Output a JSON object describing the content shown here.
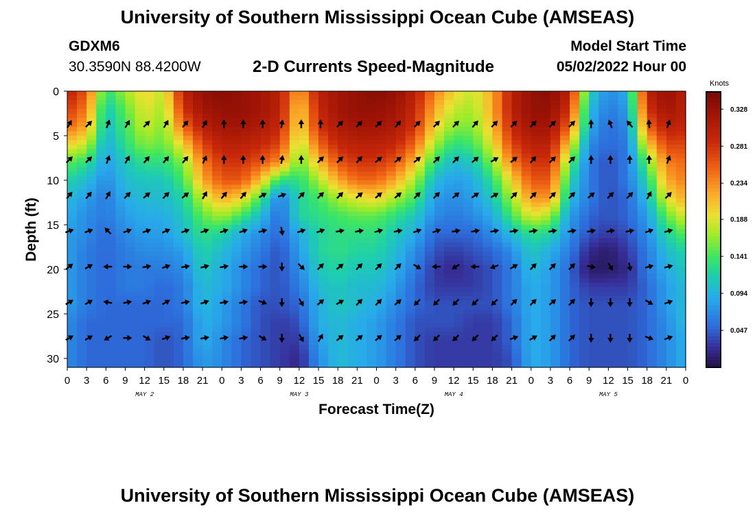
{
  "header": {
    "title": "University of Southern Mississippi Ocean Cube (AMSEAS)",
    "station_id": "GDXM6",
    "station_coords": "30.3590N  88.4200W",
    "subtitle": "2-D Currents Speed-Magnitude",
    "start_label": "Model Start Time",
    "start_value": "05/02/2022 Hour 00"
  },
  "footer": {
    "title": "University of Southern Mississippi Ocean Cube (AMSEAS)"
  },
  "chart_data": {
    "type": "heatmap",
    "title": "2-D Currents Speed-Magnitude",
    "xlabel": "Forecast Time(Z)",
    "ylabel": "Depth (ft)",
    "xlim": [
      0,
      96
    ],
    "ylim": [
      0,
      31
    ],
    "x_ticks": [
      0,
      3,
      6,
      9,
      12,
      15,
      18,
      21,
      24,
      27,
      30,
      33,
      36,
      39,
      42,
      45,
      48,
      51,
      54,
      57,
      60,
      63,
      66,
      69,
      72,
      75,
      78,
      81,
      84,
      87,
      90,
      93,
      96
    ],
    "x_tick_labels": [
      "0",
      "3",
      "6",
      "9",
      "12",
      "15",
      "18",
      "21",
      "0",
      "3",
      "6",
      "9",
      "12",
      "15",
      "18",
      "21",
      "0",
      "3",
      "6",
      "9",
      "12",
      "15",
      "18",
      "21",
      "0",
      "3",
      "6",
      "9",
      "12",
      "15",
      "18",
      "21",
      "0"
    ],
    "y_ticks": [
      0,
      5,
      10,
      15,
      20,
      25,
      30
    ],
    "y_tick_labels": [
      "0",
      "5",
      "10",
      "15",
      "20",
      "25",
      "30"
    ],
    "day_labels": [
      {
        "label": "MAY 2",
        "hour": 12
      },
      {
        "label": "MAY 3",
        "hour": 36
      },
      {
        "label": "MAY 4",
        "hour": 60
      },
      {
        "label": "MAY 5",
        "hour": 84
      }
    ],
    "colorbar": {
      "label": "Knots",
      "min": 0.0,
      "max": 0.35,
      "ticks": [
        0.328,
        0.281,
        0.234,
        0.188,
        0.141,
        0.094,
        0.047
      ],
      "tick_labels": [
        "0.328",
        "0.281",
        "0.234",
        "0.188",
        "0.141",
        "0.094",
        "0.047"
      ]
    },
    "arrow_depths": [
      3.7,
      7.7,
      11.7,
      15.7,
      19.7,
      23.7,
      27.7
    ],
    "arrow_hours": [
      0,
      3,
      6,
      9,
      12,
      15,
      18,
      21,
      24,
      27,
      30,
      33,
      36,
      39,
      42,
      45,
      48,
      51,
      54,
      57,
      60,
      63,
      66,
      69,
      72,
      75,
      78,
      81,
      84,
      87,
      90,
      93
    ],
    "speed_grid_hours": [
      0,
      3,
      6,
      9,
      12,
      15,
      18,
      21,
      24,
      27,
      30,
      33,
      36,
      39,
      42,
      45,
      48,
      51,
      54,
      57,
      60,
      63,
      66,
      69,
      72,
      75,
      78,
      81,
      84,
      87,
      90,
      93,
      96
    ],
    "speed_grid_depths": [
      0,
      2,
      4,
      6,
      8,
      10,
      12,
      14,
      16,
      18,
      20,
      22,
      24,
      26,
      28,
      30,
      31
    ],
    "speed_grid": [
      [
        0.3,
        0.26,
        0.13,
        0.17,
        0.2,
        0.18,
        0.3,
        0.33,
        0.34,
        0.33,
        0.32,
        0.3,
        0.22,
        0.3,
        0.32,
        0.33,
        0.34,
        0.33,
        0.3,
        0.24,
        0.2,
        0.18,
        0.22,
        0.3,
        0.33,
        0.34,
        0.3,
        0.12,
        0.07,
        0.09,
        0.3,
        0.33,
        0.3
      ],
      [
        0.28,
        0.24,
        0.11,
        0.15,
        0.19,
        0.17,
        0.28,
        0.32,
        0.33,
        0.33,
        0.32,
        0.3,
        0.2,
        0.29,
        0.32,
        0.33,
        0.33,
        0.32,
        0.29,
        0.22,
        0.18,
        0.17,
        0.22,
        0.3,
        0.33,
        0.33,
        0.28,
        0.1,
        0.06,
        0.08,
        0.28,
        0.32,
        0.3
      ],
      [
        0.25,
        0.22,
        0.1,
        0.14,
        0.18,
        0.16,
        0.25,
        0.3,
        0.32,
        0.32,
        0.31,
        0.29,
        0.19,
        0.28,
        0.31,
        0.32,
        0.32,
        0.31,
        0.28,
        0.2,
        0.16,
        0.16,
        0.21,
        0.29,
        0.32,
        0.32,
        0.25,
        0.09,
        0.05,
        0.07,
        0.25,
        0.3,
        0.29
      ],
      [
        0.2,
        0.18,
        0.09,
        0.13,
        0.16,
        0.15,
        0.2,
        0.27,
        0.3,
        0.3,
        0.29,
        0.27,
        0.17,
        0.25,
        0.29,
        0.3,
        0.3,
        0.29,
        0.25,
        0.17,
        0.13,
        0.14,
        0.19,
        0.27,
        0.3,
        0.3,
        0.2,
        0.07,
        0.05,
        0.06,
        0.2,
        0.27,
        0.27
      ],
      [
        0.15,
        0.13,
        0.08,
        0.11,
        0.13,
        0.13,
        0.16,
        0.24,
        0.28,
        0.28,
        0.26,
        0.23,
        0.15,
        0.21,
        0.26,
        0.28,
        0.28,
        0.26,
        0.21,
        0.13,
        0.1,
        0.11,
        0.16,
        0.24,
        0.28,
        0.28,
        0.15,
        0.06,
        0.04,
        0.06,
        0.15,
        0.24,
        0.25
      ],
      [
        0.12,
        0.1,
        0.07,
        0.1,
        0.11,
        0.11,
        0.14,
        0.22,
        0.26,
        0.26,
        0.21,
        0.13,
        0.13,
        0.17,
        0.22,
        0.25,
        0.25,
        0.22,
        0.17,
        0.1,
        0.08,
        0.09,
        0.13,
        0.2,
        0.26,
        0.26,
        0.12,
        0.06,
        0.04,
        0.06,
        0.12,
        0.22,
        0.24
      ],
      [
        0.1,
        0.08,
        0.06,
        0.09,
        0.1,
        0.1,
        0.12,
        0.18,
        0.22,
        0.2,
        0.14,
        0.06,
        0.12,
        0.14,
        0.17,
        0.19,
        0.2,
        0.17,
        0.14,
        0.08,
        0.07,
        0.08,
        0.11,
        0.17,
        0.23,
        0.23,
        0.1,
        0.06,
        0.04,
        0.05,
        0.1,
        0.19,
        0.22
      ],
      [
        0.09,
        0.07,
        0.06,
        0.08,
        0.09,
        0.09,
        0.11,
        0.15,
        0.17,
        0.14,
        0.1,
        0.05,
        0.12,
        0.13,
        0.14,
        0.15,
        0.15,
        0.13,
        0.11,
        0.07,
        0.06,
        0.07,
        0.09,
        0.14,
        0.19,
        0.17,
        0.08,
        0.05,
        0.04,
        0.05,
        0.08,
        0.15,
        0.19
      ],
      [
        0.08,
        0.07,
        0.05,
        0.07,
        0.08,
        0.08,
        0.1,
        0.13,
        0.12,
        0.09,
        0.07,
        0.05,
        0.09,
        0.12,
        0.13,
        0.13,
        0.13,
        0.11,
        0.09,
        0.05,
        0.05,
        0.05,
        0.07,
        0.1,
        0.13,
        0.12,
        0.07,
        0.04,
        0.03,
        0.04,
        0.07,
        0.12,
        0.15
      ],
      [
        0.08,
        0.06,
        0.05,
        0.06,
        0.07,
        0.07,
        0.08,
        0.12,
        0.1,
        0.08,
        0.06,
        0.04,
        0.08,
        0.12,
        0.13,
        0.12,
        0.12,
        0.1,
        0.07,
        0.04,
        0.03,
        0.04,
        0.05,
        0.07,
        0.11,
        0.09,
        0.06,
        0.02,
        0.01,
        0.03,
        0.06,
        0.1,
        0.12
      ],
      [
        0.08,
        0.06,
        0.05,
        0.06,
        0.06,
        0.06,
        0.07,
        0.11,
        0.09,
        0.07,
        0.05,
        0.04,
        0.07,
        0.11,
        0.12,
        0.11,
        0.11,
        0.09,
        0.06,
        0.03,
        0.02,
        0.03,
        0.04,
        0.06,
        0.1,
        0.08,
        0.05,
        0.01,
        0.01,
        0.02,
        0.06,
        0.09,
        0.11
      ],
      [
        0.08,
        0.06,
        0.05,
        0.06,
        0.06,
        0.05,
        0.06,
        0.1,
        0.09,
        0.07,
        0.05,
        0.04,
        0.06,
        0.1,
        0.11,
        0.1,
        0.1,
        0.08,
        0.05,
        0.03,
        0.03,
        0.03,
        0.04,
        0.06,
        0.09,
        0.08,
        0.05,
        0.03,
        0.03,
        0.03,
        0.05,
        0.08,
        0.1
      ],
      [
        0.08,
        0.06,
        0.05,
        0.05,
        0.05,
        0.05,
        0.06,
        0.1,
        0.08,
        0.06,
        0.04,
        0.04,
        0.05,
        0.09,
        0.11,
        0.1,
        0.09,
        0.07,
        0.05,
        0.04,
        0.04,
        0.04,
        0.04,
        0.06,
        0.09,
        0.08,
        0.05,
        0.04,
        0.04,
        0.04,
        0.05,
        0.08,
        0.1
      ],
      [
        0.07,
        0.05,
        0.05,
        0.05,
        0.05,
        0.05,
        0.05,
        0.09,
        0.08,
        0.06,
        0.04,
        0.03,
        0.04,
        0.09,
        0.1,
        0.09,
        0.08,
        0.06,
        0.04,
        0.04,
        0.04,
        0.03,
        0.03,
        0.05,
        0.09,
        0.08,
        0.05,
        0.04,
        0.04,
        0.04,
        0.05,
        0.07,
        0.1
      ],
      [
        0.07,
        0.05,
        0.05,
        0.05,
        0.05,
        0.04,
        0.05,
        0.09,
        0.07,
        0.05,
        0.04,
        0.03,
        0.03,
        0.08,
        0.1,
        0.09,
        0.08,
        0.06,
        0.04,
        0.03,
        0.03,
        0.03,
        0.03,
        0.05,
        0.09,
        0.08,
        0.05,
        0.04,
        0.04,
        0.04,
        0.05,
        0.07,
        0.09
      ],
      [
        0.07,
        0.05,
        0.05,
        0.05,
        0.05,
        0.04,
        0.05,
        0.08,
        0.07,
        0.05,
        0.04,
        0.03,
        0.02,
        0.07,
        0.1,
        0.09,
        0.08,
        0.06,
        0.04,
        0.03,
        0.03,
        0.03,
        0.03,
        0.04,
        0.09,
        0.08,
        0.05,
        0.04,
        0.04,
        0.04,
        0.05,
        0.07,
        0.09
      ],
      [
        0.07,
        0.05,
        0.05,
        0.05,
        0.05,
        0.04,
        0.05,
        0.08,
        0.07,
        0.05,
        0.04,
        0.03,
        0.02,
        0.07,
        0.1,
        0.09,
        0.08,
        0.06,
        0.04,
        0.03,
        0.03,
        0.03,
        0.03,
        0.04,
        0.09,
        0.08,
        0.05,
        0.04,
        0.04,
        0.04,
        0.05,
        0.07,
        0.09
      ]
    ],
    "arrow_directions_deg": [
      [
        30,
        45,
        20,
        30,
        45,
        30,
        40,
        30,
        0,
        0,
        0,
        10,
        0,
        0,
        45,
        45,
        45,
        40,
        45,
        45,
        45,
        40,
        45,
        45,
        45,
        45,
        45,
        0,
        -20,
        -40,
        -5,
        20
      ],
      [
        45,
        45,
        20,
        30,
        40,
        40,
        40,
        25,
        0,
        0,
        0,
        10,
        0,
        45,
        45,
        40,
        50,
        50,
        50,
        45,
        45,
        50,
        60,
        50,
        40,
        45,
        45,
        0,
        0,
        0,
        0,
        20
      ],
      [
        40,
        40,
        30,
        45,
        50,
        45,
        50,
        30,
        40,
        40,
        60,
        70,
        45,
        45,
        45,
        50,
        50,
        50,
        45,
        45,
        50,
        55,
        60,
        45,
        45,
        45,
        45,
        50,
        45,
        45,
        30,
        45
      ],
      [
        70,
        70,
        -45,
        70,
        70,
        65,
        70,
        70,
        70,
        70,
        75,
        170,
        70,
        70,
        80,
        80,
        75,
        80,
        70,
        70,
        80,
        80,
        80,
        80,
        80,
        80,
        80,
        80,
        80,
        80,
        70,
        75
      ],
      [
        50,
        60,
        -90,
        90,
        80,
        70,
        80,
        75,
        80,
        90,
        90,
        180,
        135,
        45,
        50,
        45,
        45,
        45,
        120,
        -90,
        -120,
        -90,
        -110,
        60,
        45,
        45,
        45,
        100,
        150,
        170,
        75,
        75
      ],
      [
        60,
        60,
        -80,
        80,
        70,
        60,
        80,
        70,
        80,
        80,
        110,
        180,
        150,
        50,
        60,
        45,
        45,
        50,
        -135,
        -135,
        -135,
        -135,
        -135,
        45,
        45,
        50,
        45,
        180,
        180,
        180,
        120,
        70
      ],
      [
        60,
        60,
        -120,
        90,
        120,
        70,
        80,
        80,
        80,
        80,
        120,
        180,
        150,
        30,
        50,
        50,
        50,
        50,
        -135,
        -135,
        -135,
        -135,
        -135,
        70,
        60,
        45,
        45,
        180,
        180,
        180,
        110,
        70
      ]
    ]
  }
}
